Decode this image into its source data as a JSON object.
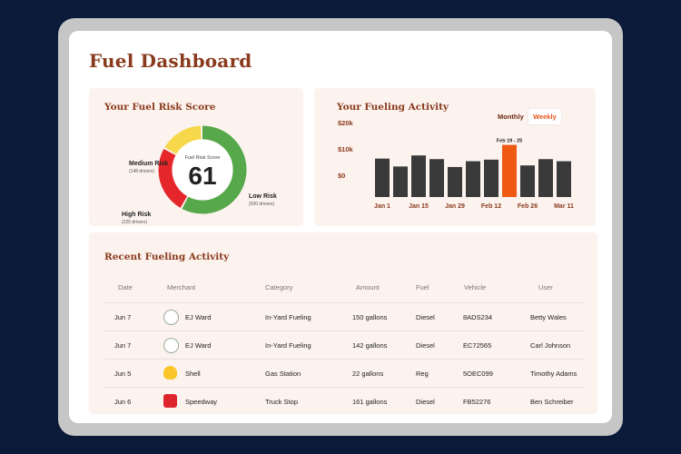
{
  "page": {
    "title": "Fuel Dashboard"
  },
  "risk_card": {
    "title": "Your Fuel Risk Score",
    "score_label": "Fuel Risk Score",
    "score": "61",
    "segments": [
      {
        "name": "Medium Risk",
        "count_text": "(148 drivers)",
        "color": "#f7d84a"
      },
      {
        "name": "Low Risk",
        "count_text": "(500 drivers)",
        "color": "#56a84a"
      },
      {
        "name": "High Risk",
        "count_text": "(225 drivers)",
        "color": "#e5262a"
      }
    ]
  },
  "activity_card": {
    "title": "Your Fueling Activity",
    "toggles": {
      "monthly": "Monthly",
      "weekly": "Weekly",
      "active": "weekly"
    },
    "chart_data": {
      "type": "bar",
      "categories": [
        "Jan 1",
        "",
        "Jan 15",
        "",
        "Jan 29",
        "",
        "Feb 12",
        "Feb 19 - 25",
        "Feb 26",
        "",
        "Mar 11"
      ],
      "tick_labels": [
        "Jan 1",
        "Jan 15",
        "Jan 29",
        "Feb 12",
        "Feb 26",
        "Mar 11"
      ],
      "values": [
        14.6,
        11.6,
        15.8,
        14.4,
        11.4,
        13.6,
        14.2,
        19.8,
        12.0,
        14.4,
        13.6
      ],
      "highlight": {
        "label": "Feb 19 - 25",
        "color": "#ee5a12"
      },
      "bar_color": "#3a3a3a",
      "y_ticks": [
        "$0",
        "$10k",
        "$20k"
      ],
      "ylim": [
        0,
        20
      ]
    }
  },
  "recent_card": {
    "title": "Recent Fueling Activity",
    "columns": {
      "date": "Date",
      "merchant": "Merchant",
      "category": "Category",
      "amount": "Amount",
      "fuel": "Fuel",
      "vehicle": "Vehicle",
      "user": "User"
    },
    "rows": [
      {
        "date": "Jun 7",
        "merchant": "EJ Ward",
        "logo": "ej-ward-logo-icon",
        "category": "In-Yard Fueling",
        "amount": "150 gallons",
        "fuel": "Diesel",
        "vehicle": "8ADS234",
        "user": "Betty Wales"
      },
      {
        "date": "Jun 7",
        "merchant": "EJ Ward",
        "logo": "ej-ward-logo-icon",
        "category": "In-Yard Fueling",
        "amount": "142 gallons",
        "fuel": "Diesel",
        "vehicle": "EC72565",
        "user": "Carl Johnson"
      },
      {
        "date": "Jun 5",
        "merchant": "Shell",
        "logo": "shell-logo-icon",
        "category": "Gas Station",
        "amount": "22 gallons",
        "fuel": "Reg",
        "vehicle": "5OEC099",
        "user": "Timothy Adams"
      },
      {
        "date": "Jun 6",
        "merchant": "Speedway",
        "logo": "speedway-logo-icon",
        "category": "Truck Stop",
        "amount": "161 gallons",
        "fuel": "Diesel",
        "vehicle": "FB52276",
        "user": "Ben Schreiber"
      }
    ]
  }
}
